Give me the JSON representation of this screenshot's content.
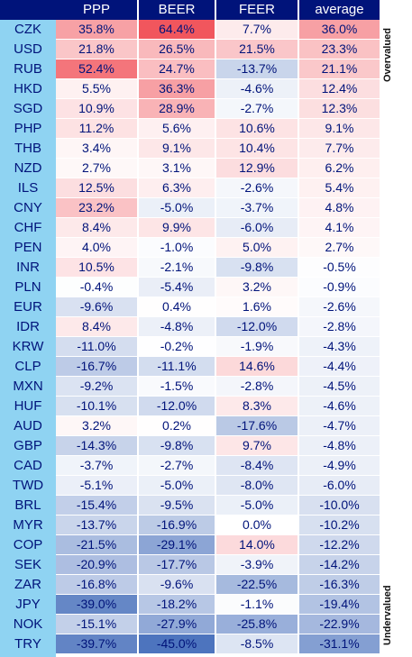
{
  "chart_data": {
    "type": "heatmap",
    "columns": [
      "PPP",
      "BEER",
      "FEER",
      "average"
    ],
    "rows": [
      {
        "ccy": "CZK",
        "values": [
          35.8,
          64.4,
          7.7,
          36.0
        ]
      },
      {
        "ccy": "USD",
        "values": [
          21.8,
          26.5,
          21.5,
          23.3
        ]
      },
      {
        "ccy": "RUB",
        "values": [
          52.4,
          24.7,
          -13.7,
          21.1
        ]
      },
      {
        "ccy": "HKD",
        "values": [
          5.5,
          36.3,
          -4.6,
          12.4
        ]
      },
      {
        "ccy": "SGD",
        "values": [
          10.9,
          28.9,
          -2.7,
          12.3
        ]
      },
      {
        "ccy": "PHP",
        "values": [
          11.2,
          5.6,
          10.6,
          9.1
        ]
      },
      {
        "ccy": "THB",
        "values": [
          3.4,
          9.1,
          10.4,
          7.7
        ]
      },
      {
        "ccy": "NZD",
        "values": [
          2.7,
          3.1,
          12.9,
          6.2
        ]
      },
      {
        "ccy": "ILS",
        "values": [
          12.5,
          6.3,
          -2.6,
          5.4
        ]
      },
      {
        "ccy": "CNY",
        "values": [
          23.2,
          -5.0,
          -3.7,
          4.8
        ]
      },
      {
        "ccy": "CHF",
        "values": [
          8.4,
          9.9,
          -6.0,
          4.1
        ]
      },
      {
        "ccy": "PEN",
        "values": [
          4.0,
          -1.0,
          5.0,
          2.7
        ]
      },
      {
        "ccy": "INR",
        "values": [
          10.5,
          -2.1,
          -9.8,
          -0.5
        ]
      },
      {
        "ccy": "PLN",
        "values": [
          -0.4,
          -5.4,
          3.2,
          -0.9
        ]
      },
      {
        "ccy": "EUR",
        "values": [
          -9.6,
          0.4,
          1.6,
          -2.6
        ]
      },
      {
        "ccy": "IDR",
        "values": [
          8.4,
          -4.8,
          -12.0,
          -2.8
        ]
      },
      {
        "ccy": "KRW",
        "values": [
          -11.0,
          -0.2,
          -1.9,
          -4.3
        ]
      },
      {
        "ccy": "CLP",
        "values": [
          -16.7,
          -11.1,
          14.6,
          -4.4
        ]
      },
      {
        "ccy": "MXN",
        "values": [
          -9.2,
          -1.5,
          -2.8,
          -4.5
        ]
      },
      {
        "ccy": "HUF",
        "values": [
          -10.1,
          -12.0,
          8.3,
          -4.6
        ]
      },
      {
        "ccy": "AUD",
        "values": [
          3.2,
          0.2,
          -17.6,
          -4.7
        ]
      },
      {
        "ccy": "GBP",
        "values": [
          -14.3,
          -9.8,
          9.7,
          -4.8
        ]
      },
      {
        "ccy": "CAD",
        "values": [
          -3.7,
          -2.7,
          -8.4,
          -4.9
        ]
      },
      {
        "ccy": "TWD",
        "values": [
          -5.1,
          -5.0,
          -8.0,
          -6.0
        ]
      },
      {
        "ccy": "BRL",
        "values": [
          -15.4,
          -9.5,
          -5.0,
          -10.0
        ]
      },
      {
        "ccy": "MYR",
        "values": [
          -13.7,
          -16.9,
          0.0,
          -10.2
        ]
      },
      {
        "ccy": "COP",
        "values": [
          -21.5,
          -29.1,
          14.0,
          -12.2
        ]
      },
      {
        "ccy": "SEK",
        "values": [
          -20.9,
          -17.7,
          -3.9,
          -14.2
        ]
      },
      {
        "ccy": "ZAR",
        "values": [
          -16.8,
          -9.6,
          -22.5,
          -16.3
        ]
      },
      {
        "ccy": "JPY",
        "values": [
          -39.0,
          -18.2,
          -1.1,
          -19.4
        ]
      },
      {
        "ccy": "NOK",
        "values": [
          -15.1,
          -27.9,
          -25.8,
          -22.9
        ]
      },
      {
        "ccy": "TRY",
        "values": [
          -39.7,
          -45.0,
          -8.5,
          -31.1
        ]
      }
    ],
    "side_labels": {
      "top": "Overvalued",
      "bottom": "Undervalued"
    },
    "colors": {
      "header_bg": "#00137a",
      "header_text": "#ffffff",
      "code_bg": "#8fd3f2",
      "text": "#00137a",
      "positive": "#f0474f",
      "negative": "#3e68b8"
    }
  }
}
